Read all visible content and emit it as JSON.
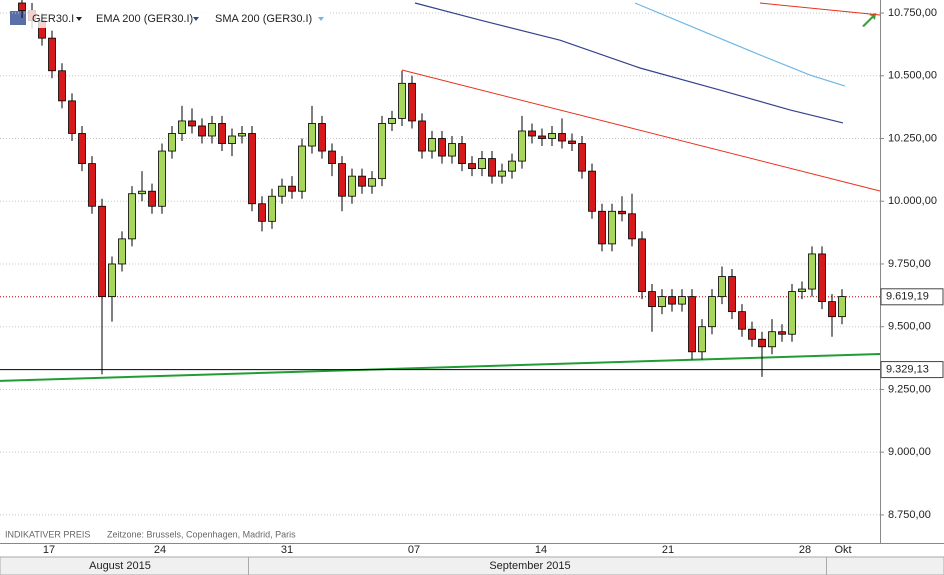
{
  "chart_data": {
    "type": "candlestick",
    "name": "GER30.I",
    "up_color": "#a6d65a",
    "down_color": "#d7191c",
    "x": [
      0,
      1,
      2,
      3,
      4,
      5,
      6,
      7,
      8,
      9,
      10,
      11,
      12,
      13,
      14,
      15,
      16,
      17,
      18,
      19,
      20,
      21,
      22,
      23,
      24,
      25,
      26,
      27,
      28,
      29,
      30,
      31,
      32,
      33,
      34,
      35,
      36,
      37,
      38,
      39,
      40,
      41,
      42,
      43,
      44,
      45,
      46,
      47,
      48,
      49,
      50,
      51,
      52,
      53,
      54,
      55,
      56,
      57,
      58,
      59,
      60,
      61,
      62,
      63,
      64,
      65,
      66,
      67,
      68,
      69,
      70,
      71,
      72,
      73,
      74,
      75,
      76,
      77,
      78,
      79,
      80,
      81,
      82
    ],
    "open": [
      10790,
      10760,
      10720,
      10650,
      10520,
      10400,
      10270,
      10150,
      9980,
      9620,
      9750,
      9850,
      10030,
      10040,
      9980,
      10200,
      10270,
      10320,
      10300,
      10260,
      10310,
      10230,
      10260,
      10270,
      9990,
      9920,
      10020,
      10060,
      10040,
      10220,
      10310,
      10200,
      10150,
      10020,
      10100,
      10060,
      10090,
      10310,
      10330,
      10470,
      10320,
      10200,
      10250,
      10180,
      10230,
      10150,
      10130,
      10170,
      10100,
      10120,
      10160,
      10280,
      10260,
      10250,
      10270,
      10240,
      10230,
      10120,
      9960,
      9830,
      9960,
      9950,
      9850,
      9640,
      9580,
      9620,
      9590,
      9620,
      9400,
      9500,
      9620,
      9700,
      9560,
      9490,
      9450,
      9420,
      9480,
      9470,
      9640,
      9650,
      9790,
      9600,
      9540
    ],
    "high": [
      10820,
      10790,
      10750,
      10680,
      10550,
      10430,
      10300,
      10180,
      10010,
      9780,
      9880,
      10060,
      10120,
      10070,
      10230,
      10300,
      10380,
      10370,
      10330,
      10340,
      10340,
      10290,
      10300,
      10300,
      10020,
      10050,
      10090,
      10100,
      10250,
      10380,
      10340,
      10230,
      10180,
      10130,
      10130,
      10120,
      10340,
      10360,
      10520,
      10500,
      10350,
      10280,
      10280,
      10260,
      10260,
      10180,
      10200,
      10200,
      10150,
      10190,
      10340,
      10310,
      10290,
      10300,
      10330,
      10270,
      10260,
      10150,
      9990,
      9990,
      10020,
      10030,
      9880,
      9670,
      9650,
      9650,
      9650,
      9650,
      9530,
      9650,
      9740,
      9730,
      9590,
      9520,
      9480,
      9530,
      9510,
      9670,
      9680,
      9820,
      9820,
      9630,
      9650
    ],
    "low": [
      10730,
      10690,
      10620,
      10490,
      10370,
      10240,
      10120,
      9950,
      9310,
      9520,
      9720,
      9820,
      10000,
      9950,
      9950,
      10170,
      10240,
      10270,
      10230,
      10230,
      10200,
      10180,
      10230,
      9960,
      9880,
      9890,
      9990,
      10010,
      10010,
      10190,
      10170,
      10100,
      9960,
      9990,
      10030,
      10030,
      10060,
      10280,
      10300,
      10290,
      10170,
      10170,
      10150,
      10150,
      10120,
      10100,
      10100,
      10070,
      10070,
      10090,
      10130,
      10230,
      10220,
      10220,
      10210,
      10200,
      10090,
      9930,
      9800,
      9800,
      9920,
      9820,
      9610,
      9480,
      9550,
      9560,
      9560,
      9370,
      9370,
      9470,
      9590,
      9530,
      9460,
      9420,
      9300,
      9390,
      9440,
      9440,
      9610,
      9620,
      9570,
      9460,
      9510
    ],
    "close": [
      10760,
      10720,
      10650,
      10520,
      10400,
      10270,
      10150,
      9980,
      9620,
      9750,
      9850,
      10030,
      10040,
      9980,
      10200,
      10270,
      10320,
      10300,
      10260,
      10310,
      10230,
      10260,
      10270,
      9990,
      9920,
      10020,
      10060,
      10040,
      10220,
      10310,
      10200,
      10150,
      10020,
      10100,
      10060,
      10090,
      10310,
      10330,
      10470,
      10320,
      10200,
      10250,
      10180,
      10230,
      10150,
      10130,
      10170,
      10100,
      10120,
      10160,
      10280,
      10260,
      10250,
      10270,
      10240,
      10230,
      10120,
      9960,
      9830,
      9960,
      9950,
      9850,
      9640,
      9580,
      9620,
      9590,
      9620,
      9400,
      9500,
      9620,
      9700,
      9560,
      9490,
      9450,
      9420,
      9480,
      9470,
      9640,
      9650,
      9790,
      9600,
      9540,
      9620
    ],
    "series": [
      {
        "name": "EMA 200 (GER30.I)",
        "color": "#34438f",
        "x": [
          39.3,
          45.8,
          53.8,
          61.8,
          69.8,
          76.8,
          82.1
        ],
        "values": [
          10790,
          10722,
          10642,
          10531,
          10443,
          10364,
          10312
        ]
      },
      {
        "name": "SMA 200 (GER30.I)",
        "color": "#6fb7e6",
        "x": [
          61.3,
          67.8,
          73.8,
          78.8,
          82.3
        ],
        "values": [
          10790,
          10682,
          10583,
          10503,
          10459
        ]
      }
    ],
    "trendlines": [
      {
        "color": "#e8321e",
        "x": [
          38,
          85.8
        ],
        "values": [
          10523,
          10041
        ]
      },
      {
        "color": "#e8321e",
        "x": [
          73.8,
          85.8
        ],
        "values": [
          10790,
          10742
        ]
      },
      {
        "color": "#1f9e33",
        "x": [
          -2.2,
          85.8
        ],
        "values": [
          9284,
          9391
        ]
      }
    ],
    "price_lines": [
      {
        "value": 9619.19,
        "label": "9.619,19",
        "color": "#c00000",
        "dotted": true
      },
      {
        "value": 9329.13,
        "label": "9.329,13",
        "color": "#000000",
        "dotted": false
      }
    ],
    "xlim": [
      -2.2,
      85.8
    ],
    "ylim": [
      8638,
      10802
    ],
    "xticks": [
      {
        "value": 2.7,
        "label": "17"
      },
      {
        "value": 13.8,
        "label": "24"
      },
      {
        "value": 26.5,
        "label": "31"
      },
      {
        "value": 39.2,
        "label": "07"
      },
      {
        "value": 51.9,
        "label": "14"
      },
      {
        "value": 64.6,
        "label": "21"
      },
      {
        "value": 78.3,
        "label": "28"
      },
      {
        "value": 82.1,
        "label": "Okt"
      }
    ],
    "month_ticks": [
      {
        "value": 9.8,
        "label": "August 2015"
      },
      {
        "value": 50.8,
        "label": "September 2015"
      }
    ],
    "yticks": [
      {
        "value": 8750,
        "label": "8.750,00"
      },
      {
        "value": 9000,
        "label": "9.000,00"
      },
      {
        "value": 9250,
        "label": "9.250,00"
      },
      {
        "value": 9500,
        "label": "9.500,00"
      },
      {
        "value": 9750,
        "label": "9.750,00"
      },
      {
        "value": 10000,
        "label": "10.000,00"
      },
      {
        "value": 10250,
        "label": "10.250,00"
      },
      {
        "value": 10500,
        "label": "10.500,00"
      },
      {
        "value": 10750,
        "label": "10.750,00"
      }
    ],
    "grid": true,
    "footer": [
      "INDIKATIVER PREIS",
      "Zeitzone: Brussels, Copenhagen, Madrid, Paris"
    ]
  }
}
